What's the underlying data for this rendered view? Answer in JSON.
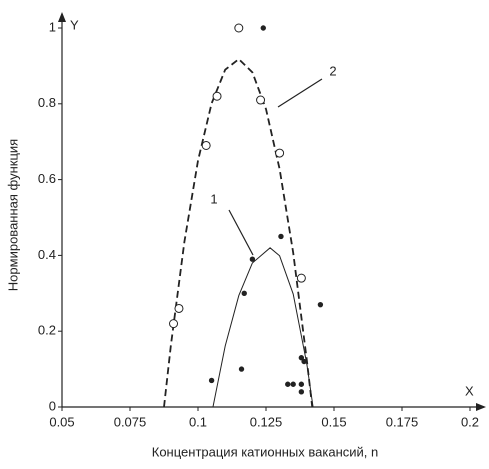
{
  "chart_data": {
    "type": "scatter",
    "xlabel": "Концентрация катионных вакансий, n",
    "ylabel": "Нормированная функция",
    "x_axis_name": "X",
    "y_axis_name": "Y",
    "xlim": [
      0.05,
      0.2
    ],
    "xticks": [
      0.05,
      0.075,
      0.1,
      0.125,
      0.15,
      0.175,
      0.2
    ],
    "ylim": [
      0,
      1
    ],
    "yticks": [
      0,
      0.2,
      0.4,
      0.6,
      0.8,
      1
    ],
    "color": "#222222",
    "series": [
      {
        "marker": "open-circle",
        "x": [
          0.091,
          0.093,
          0.103,
          0.107,
          0.115,
          0.123,
          0.13,
          0.138
        ],
        "values": [
          0.22,
          0.26,
          0.69,
          0.82,
          1.0,
          0.81,
          0.67,
          0.34
        ]
      },
      {
        "marker": "dot",
        "x": [
          0.124,
          0.1305,
          0.12,
          0.117,
          0.105,
          0.116,
          0.145,
          0.138,
          0.139,
          0.133,
          0.135,
          0.138,
          0.138
        ],
        "values": [
          1.0,
          0.45,
          0.39,
          0.3,
          0.07,
          0.1,
          0.27,
          0.13,
          0.12,
          0.06,
          0.06,
          0.06,
          0.04
        ]
      }
    ],
    "curves": [
      {
        "label": "1",
        "style": "solid",
        "x": [
          0.1055,
          0.11,
          0.115,
          0.12,
          0.1265,
          0.13,
          0.135,
          0.14,
          0.1423
        ],
        "values": [
          0,
          0.161,
          0.294,
          0.38,
          0.42,
          0.399,
          0.298,
          0.114,
          0
        ]
      },
      {
        "label": "2",
        "style": "dashed",
        "x": [
          0.0875,
          0.09,
          0.095,
          0.1,
          0.105,
          0.11,
          0.115,
          0.12,
          0.125,
          0.13,
          0.135,
          0.14,
          0.142
        ],
        "values": [
          0,
          0.161,
          0.436,
          0.65,
          0.801,
          0.89,
          0.918,
          0.883,
          0.786,
          0.628,
          0.407,
          0.124,
          0
        ]
      }
    ]
  }
}
